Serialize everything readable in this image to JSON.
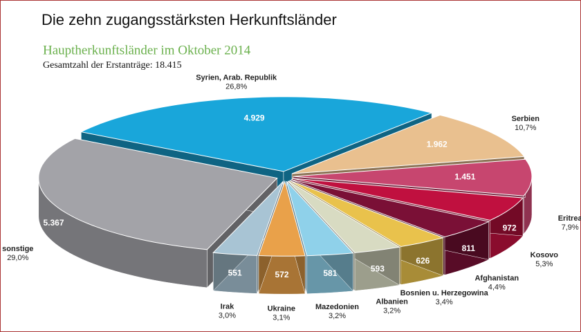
{
  "chart_data": {
    "type": "pie",
    "title": "Die zehn zugangsstärksten Herkunftsländer",
    "subtitle": "Hauptherkunftsländer im Oktober 2014",
    "note": "Gesamtzahl der Erstanträge: 18.415",
    "categories": [
      "Syrien, Arab. Republik",
      "Serbien",
      "Eritrea",
      "Kosovo",
      "Afghanistan",
      "Bosnien u. Herzegowina",
      "Albanien",
      "Mazedonien",
      "Ukraine",
      "Irak",
      "sonstige"
    ],
    "values": [
      4929,
      1962,
      1451,
      972,
      811,
      626,
      593,
      581,
      572,
      551,
      5367
    ],
    "value_labels": [
      "4.929",
      "1.962",
      "1.451",
      "972",
      "811",
      "626",
      "593",
      "581",
      "572",
      "551",
      "5.367"
    ],
    "shares": [
      26.8,
      10.7,
      7.9,
      5.3,
      4.4,
      3.4,
      3.2,
      3.2,
      3.1,
      3.0,
      29.0
    ],
    "share_labels": [
      "26,8%",
      "10,7%",
      "7,9%",
      "5,3%",
      "4,4%",
      "3,4%",
      "3,2%",
      "3,2%",
      "3,1%",
      "3,0%",
      "29,0%"
    ],
    "colors": [
      "#19a6da",
      "#e9c08f",
      "#c7466f",
      "#c0103f",
      "#7a1036",
      "#e9c24c",
      "#d8dbc2",
      "#8fd1ea",
      "#e9a14a",
      "#a8c4d4",
      "#a3a3a8"
    ]
  }
}
